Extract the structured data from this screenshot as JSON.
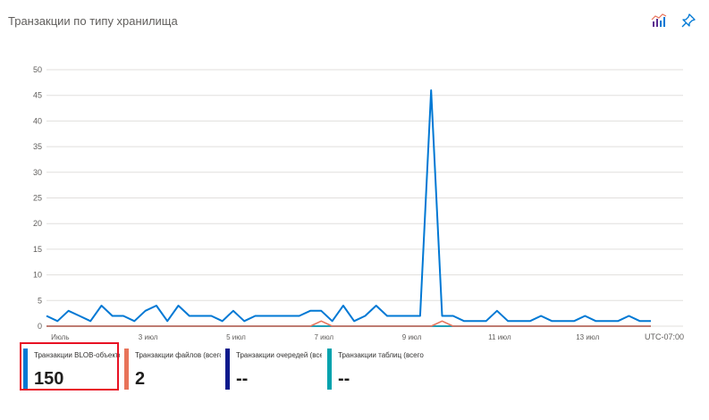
{
  "title": "Транзакции по типу хранилища",
  "toolbar": {
    "metrics_icon": "chart-metrics-icon",
    "pin_icon": "pin-icon"
  },
  "timezone": "UTC-07:00",
  "colors": {
    "blob": "#0078d4",
    "file": "#e8735a",
    "queue": "#0f1a8c",
    "table": "#00a2ad",
    "grid": "#e1dfdd",
    "highlight": "#e81123"
  },
  "legend": [
    {
      "label": "Транзакции BLOB-объектов (всего)",
      "value": "150"
    },
    {
      "label": "Транзакции файлов (всего)",
      "value": "2"
    },
    {
      "label": "Транзакции очередей (всего)",
      "value": "--"
    },
    {
      "label": "Транзакции таблиц (всего)",
      "value": "--"
    }
  ],
  "chart_data": {
    "type": "line",
    "ylim": [
      0,
      50
    ],
    "yticks": [
      0,
      5,
      10,
      15,
      20,
      25,
      30,
      35,
      40,
      45,
      50
    ],
    "xticks": [
      {
        "label": "Июль",
        "index": 1
      },
      {
        "label": "3 июл",
        "index": 9
      },
      {
        "label": "5 июл",
        "index": 17
      },
      {
        "label": "7 июл",
        "index": 25
      },
      {
        "label": "9 июл",
        "index": 33
      },
      {
        "label": "11 июл",
        "index": 41
      },
      {
        "label": "13 июл",
        "index": 49
      }
    ],
    "series": [
      {
        "name": "Транзакции BLOB-объектов (всего)",
        "values": [
          2,
          1,
          3,
          2,
          1,
          4,
          2,
          2,
          1,
          3,
          4,
          1,
          4,
          2,
          2,
          2,
          1,
          3,
          1,
          2,
          2,
          2,
          2,
          2,
          3,
          3,
          1,
          4,
          1,
          2,
          4,
          2,
          2,
          2,
          2,
          46,
          2,
          2,
          1,
          1,
          1,
          3,
          1,
          1,
          1,
          2,
          1,
          1,
          1,
          2,
          1,
          1,
          1,
          2,
          1,
          1
        ]
      },
      {
        "name": "Транзакции файлов (всего)",
        "values": [
          0,
          0,
          0,
          0,
          0,
          0,
          0,
          0,
          0,
          0,
          0,
          0,
          0,
          0,
          0,
          0,
          0,
          0,
          0,
          0,
          0,
          0,
          0,
          0,
          0,
          1,
          0,
          0,
          0,
          0,
          0,
          0,
          0,
          0,
          0,
          0,
          1,
          0,
          0,
          0,
          0,
          0,
          0,
          0,
          0,
          0,
          0,
          0,
          0,
          0,
          0,
          0,
          0,
          0,
          0,
          0
        ]
      },
      {
        "name": "Транзакции очередей (всего)",
        "values": [
          0,
          0,
          0,
          0,
          0,
          0,
          0,
          0,
          0,
          0,
          0,
          0,
          0,
          0,
          0,
          0,
          0,
          0,
          0,
          0,
          0,
          0,
          0,
          0,
          0,
          0,
          0,
          0,
          0,
          0,
          0,
          0,
          0,
          0,
          0,
          0,
          0,
          0,
          0,
          0,
          0,
          0,
          0,
          0,
          0,
          0,
          0,
          0,
          0,
          0,
          0,
          0,
          0,
          0,
          0,
          0
        ]
      },
      {
        "name": "Транзакции таблиц (всего)",
        "values": [
          0,
          0,
          0,
          0,
          0,
          0,
          0,
          0,
          0,
          0,
          0,
          0,
          0,
          0,
          0,
          0,
          0,
          0,
          0,
          0,
          0,
          0,
          0,
          0,
          0,
          0,
          0,
          0,
          0,
          0,
          0,
          0,
          0,
          0,
          0,
          0,
          0,
          0,
          0,
          0,
          0,
          0,
          0,
          0,
          0,
          0,
          0,
          0,
          0,
          0,
          0,
          0,
          0,
          0,
          0,
          0
        ]
      }
    ]
  }
}
